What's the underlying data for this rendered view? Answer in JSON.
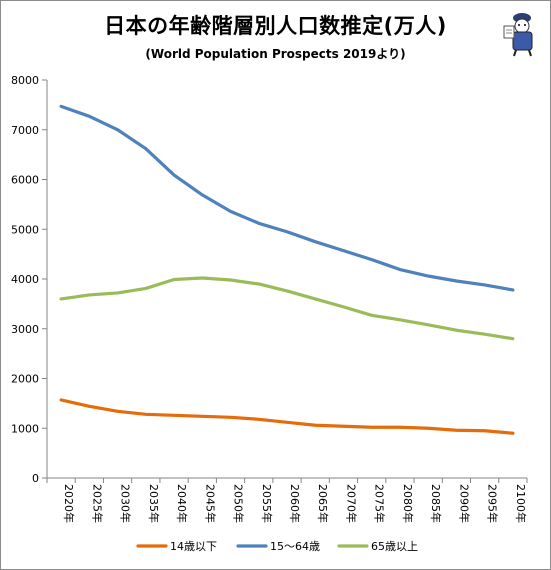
{
  "chart_data": {
    "type": "line",
    "title": "日本の年齢階層別人口数推定(万人)",
    "subtitle": "(World Population Prospects 2019より)",
    "categories": [
      "2020年",
      "2025年",
      "2030年",
      "2035年",
      "2040年",
      "2045年",
      "2050年",
      "2055年",
      "2060年",
      "2065年",
      "2070年",
      "2075年",
      "2080年",
      "2085年",
      "2090年",
      "2095年",
      "2100年"
    ],
    "ylim": [
      0,
      8000
    ],
    "yticks": [
      0,
      1000,
      2000,
      3000,
      4000,
      5000,
      6000,
      7000,
      8000
    ],
    "grid": false,
    "legend_position": "bottom",
    "series": [
      {
        "name": "14歳以下",
        "color": "#e46c0a",
        "values": [
          1570,
          1440,
          1340,
          1280,
          1260,
          1240,
          1220,
          1180,
          1120,
          1060,
          1040,
          1020,
          1020,
          1000,
          960,
          950,
          900
        ]
      },
      {
        "name": "15〜64歳",
        "color": "#4f81bd",
        "values": [
          7470,
          7270,
          7000,
          6620,
          6090,
          5690,
          5360,
          5120,
          4950,
          4750,
          4570,
          4390,
          4190,
          4060,
          3960,
          3880,
          3780
        ]
      },
      {
        "name": "65歳以上",
        "color": "#9bbb59",
        "values": [
          3600,
          3680,
          3720,
          3810,
          3990,
          4020,
          3980,
          3900,
          3760,
          3600,
          3440,
          3270,
          3180,
          3080,
          2970,
          2890,
          2800
        ]
      }
    ]
  },
  "mascot": {
    "icon": "mascot-figure-icon"
  }
}
